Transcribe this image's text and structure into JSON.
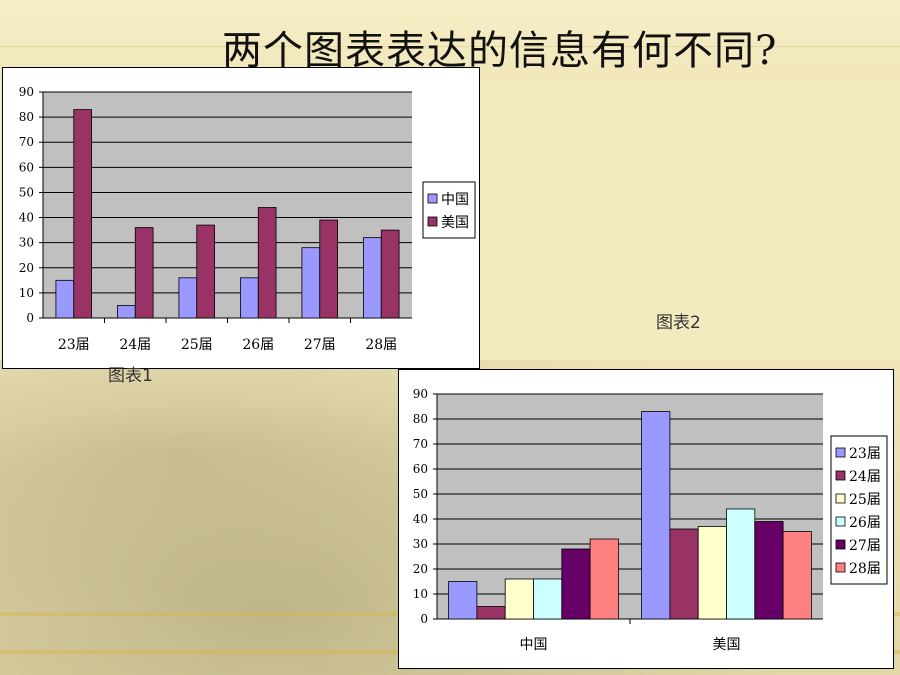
{
  "title": "两个图表表达的信息有何不同?",
  "captions": {
    "chart1": "图表1",
    "chart2": "图表2"
  },
  "chart_data": [
    {
      "type": "bar",
      "categories": [
        "23届",
        "24届",
        "25届",
        "26届",
        "27届",
        "28届"
      ],
      "series": [
        {
          "name": "中国",
          "values": [
            15,
            5,
            16,
            16,
            28,
            32
          ],
          "color": "#9999ff"
        },
        {
          "name": "美国",
          "values": [
            83,
            36,
            37,
            44,
            39,
            35
          ],
          "color": "#993366"
        }
      ],
      "ylim": [
        0,
        90
      ],
      "yticks": [
        0,
        10,
        20,
        30,
        40,
        50,
        60,
        70,
        80,
        90
      ],
      "grid": true,
      "legend": "right"
    },
    {
      "type": "bar",
      "categories": [
        "中国",
        "美国"
      ],
      "series": [
        {
          "name": "23届",
          "values": [
            15,
            83
          ],
          "color": "#9999ff"
        },
        {
          "name": "24届",
          "values": [
            5,
            36
          ],
          "color": "#993366"
        },
        {
          "name": "25届",
          "values": [
            16,
            37
          ],
          "color": "#ffffcc"
        },
        {
          "name": "26届",
          "values": [
            16,
            44
          ],
          "color": "#ccffff"
        },
        {
          "name": "27届",
          "values": [
            28,
            39
          ],
          "color": "#660066"
        },
        {
          "name": "28届",
          "values": [
            32,
            35
          ],
          "color": "#ff8080"
        }
      ],
      "ylim": [
        0,
        90
      ],
      "yticks": [
        0,
        10,
        20,
        30,
        40,
        50,
        60,
        70,
        80,
        90
      ],
      "grid": true,
      "legend": "right"
    }
  ]
}
